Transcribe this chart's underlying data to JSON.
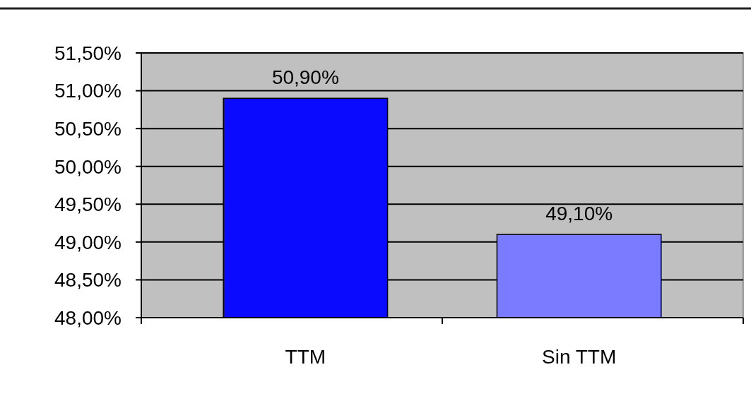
{
  "chart_data": {
    "type": "bar",
    "categories": [
      "TTM",
      "Sin TTM"
    ],
    "values": [
      50.9,
      49.1
    ],
    "colors": [
      "#0a0aff",
      "#7b7bff"
    ],
    "value_labels": [
      "50,90%",
      "49,10%"
    ],
    "ylim": [
      48,
      51.5
    ],
    "yticks": [
      {
        "value": 48,
        "label": "48,00%"
      },
      {
        "value": 48.5,
        "label": "48,50%"
      },
      {
        "value": 49,
        "label": "49,00%"
      },
      {
        "value": 49.5,
        "label": "49,50%"
      },
      {
        "value": 50,
        "label": "50,00%"
      },
      {
        "value": 50.5,
        "label": "50,50%"
      },
      {
        "value": 51,
        "label": "51,00%"
      },
      {
        "value": 51.5,
        "label": "51,50%"
      }
    ],
    "grid": "y"
  }
}
